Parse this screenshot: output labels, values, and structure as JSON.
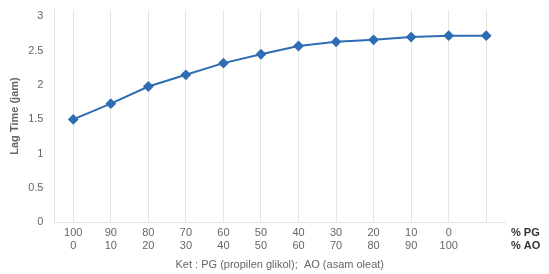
{
  "chart_data": {
    "type": "line",
    "categories": [
      [
        "100",
        "0"
      ],
      [
        "90",
        "10"
      ],
      [
        "80",
        "20"
      ],
      [
        "70",
        "30"
      ],
      [
        "60",
        "40"
      ],
      [
        "50",
        "50"
      ],
      [
        "40",
        "60"
      ],
      [
        "30",
        "70"
      ],
      [
        "20",
        "80"
      ],
      [
        "10",
        "90"
      ],
      [
        "0",
        "100"
      ],
      null
    ],
    "category_rows": [
      "% PG",
      "% AO"
    ],
    "values": [
      1.5,
      1.73,
      1.98,
      2.15,
      2.32,
      2.45,
      2.57,
      2.63,
      2.66,
      2.7,
      2.72,
      2.72
    ],
    "ylabel": "Lag Time (jam)",
    "xlabel": "Ket : PG (propilen glikol);  AO (asam oleat)",
    "color": "#2E6DB4",
    "marker": "diamond",
    "ylim": [
      0,
      3.1
    ],
    "yticks": [
      0,
      0.5,
      1,
      1.5,
      2,
      2.5,
      3
    ],
    "grid": "x"
  }
}
